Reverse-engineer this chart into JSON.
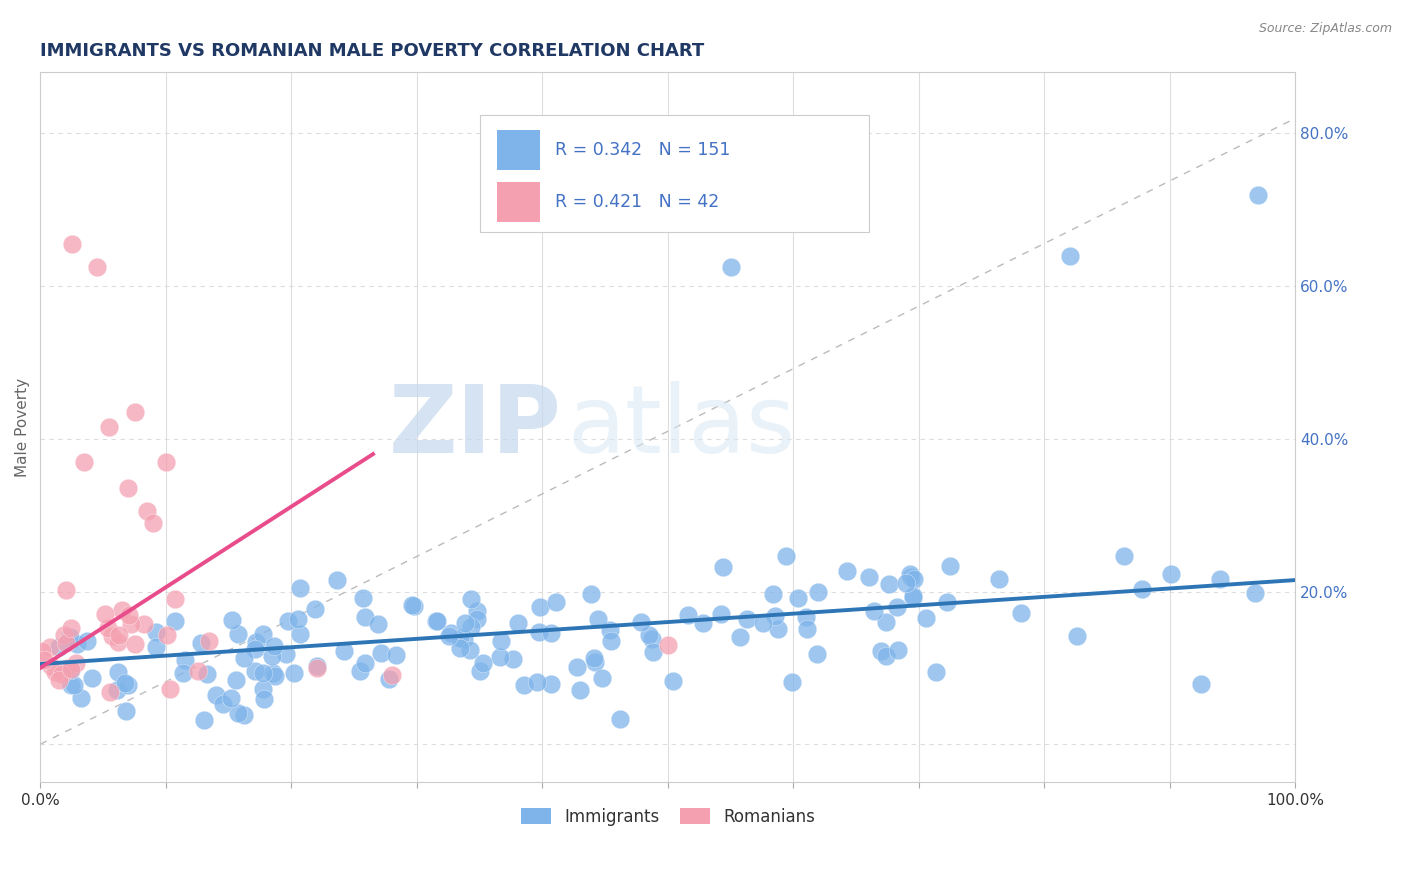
{
  "title": "IMMIGRANTS VS ROMANIAN MALE POVERTY CORRELATION CHART",
  "source": "Source: ZipAtlas.com",
  "ylabel": "Male Poverty",
  "xlim": [
    0,
    1
  ],
  "ylim": [
    -0.05,
    0.88
  ],
  "xticks": [
    0.0,
    0.1,
    0.2,
    0.3,
    0.4,
    0.5,
    0.6,
    0.7,
    0.8,
    0.9,
    1.0
  ],
  "xticklabels": [
    "0.0%",
    "",
    "",
    "",
    "",
    "",
    "",
    "",
    "",
    "",
    "100.0%"
  ],
  "yticks": [
    0.0,
    0.2,
    0.4,
    0.6,
    0.8
  ],
  "yticklabels_right": [
    "",
    "20.0%",
    "40.0%",
    "60.0%",
    "80.0%"
  ],
  "blue_color": "#7EB4EA",
  "pink_color": "#F4A0B0",
  "blue_line_color": "#2E75B6",
  "pink_line_color": "#E84C8B",
  "diag_line_color": "#BBBBBB",
  "blue_R": 0.342,
  "blue_N": 151,
  "pink_R": 0.421,
  "pink_N": 42,
  "watermark_zip": "ZIP",
  "watermark_atlas": "atlas",
  "background_color": "#FFFFFF",
  "grid_color": "#DDDDDD",
  "title_color": "#1F3864",
  "axis_color": "#4472C4",
  "legend_label_blue": "Immigrants",
  "legend_label_pink": "Romanians",
  "legend_R_blue": "0.342",
  "legend_N_blue": "151",
  "legend_R_pink": "0.421",
  "legend_N_pink": "42"
}
